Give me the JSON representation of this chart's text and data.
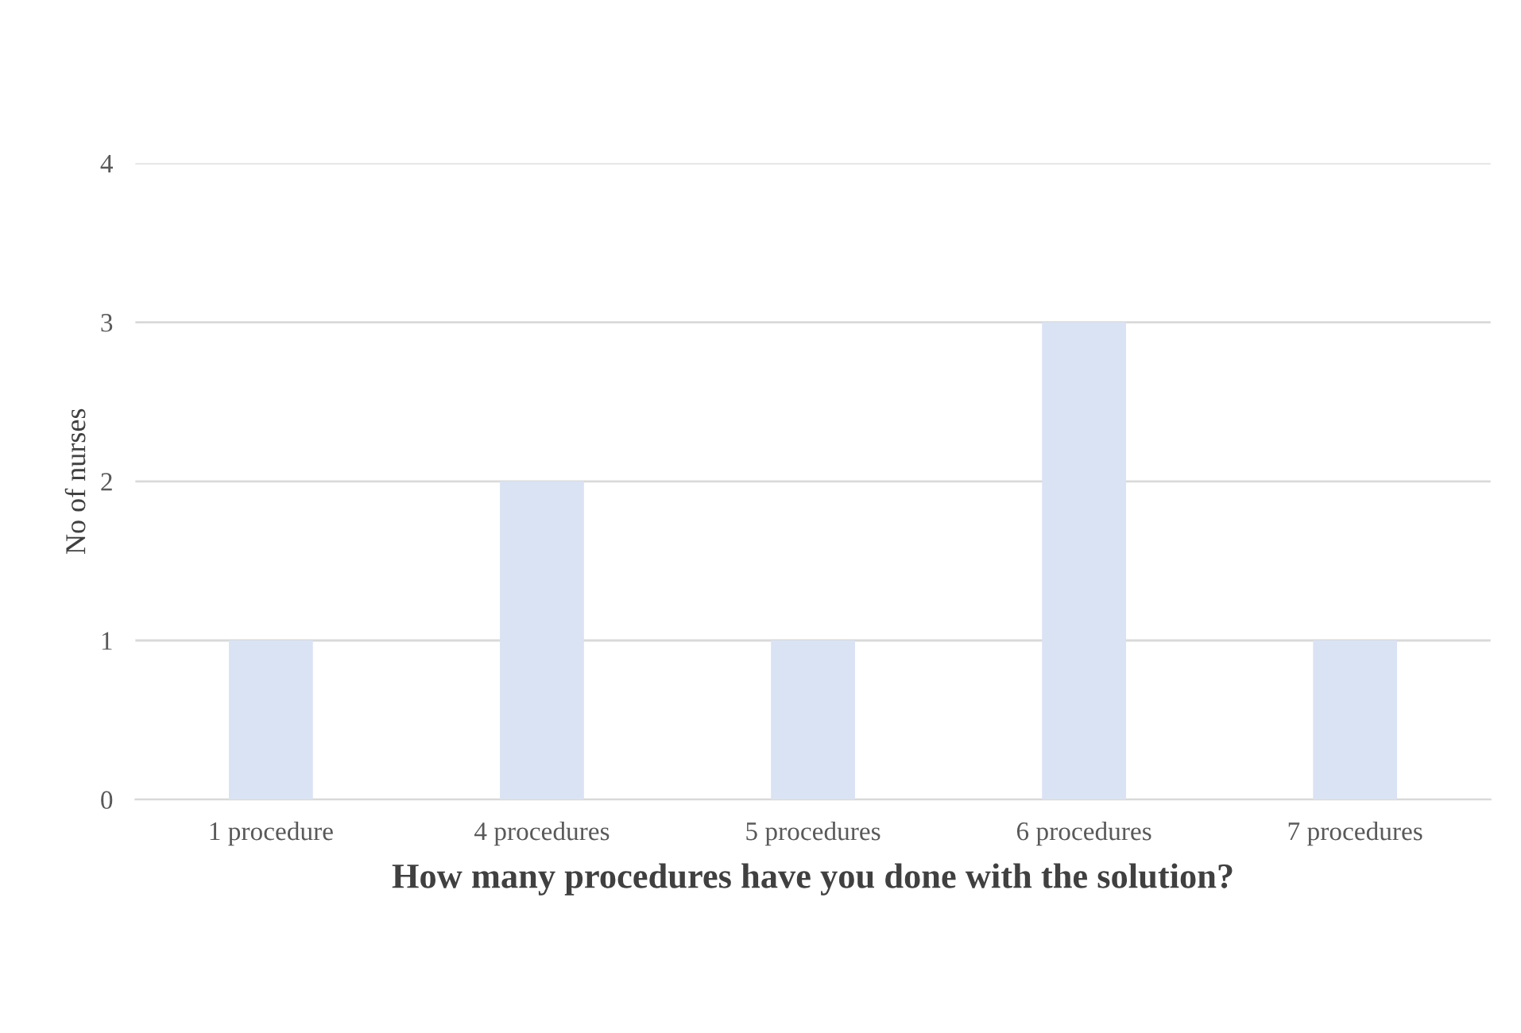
{
  "chart_data": {
    "type": "bar",
    "xlabel": "How many procedures have you done with the solution?",
    "ylabel": "No of nurses",
    "categories": [
      "1 procedure",
      "4 procedures",
      "5 procedures",
      "6 procedures",
      "7 procedures"
    ],
    "values": [
      1,
      2,
      1,
      3,
      1
    ],
    "color": "#dae3f3",
    "ylim": [
      0,
      4
    ],
    "yticks": [
      0,
      1,
      2,
      3,
      4
    ],
    "grid": "y",
    "legend": false
  }
}
